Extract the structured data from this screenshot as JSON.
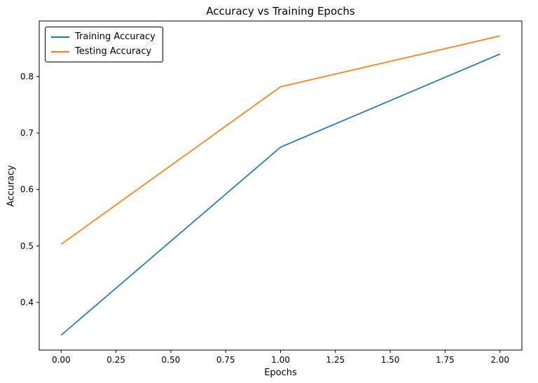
{
  "chart_data": {
    "type": "line",
    "title": "Accuracy vs Training Epochs",
    "xlabel": "Epochs",
    "ylabel": "Accuracy",
    "x": [
      0,
      1,
      2
    ],
    "series": [
      {
        "name": "Training Accuracy",
        "color": "#1f77b4",
        "values": [
          0.342,
          0.675,
          0.84
        ]
      },
      {
        "name": "Testing Accuracy",
        "color": "#ff7f0e",
        "values": [
          0.503,
          0.782,
          0.872
        ]
      }
    ],
    "xlim": [
      -0.1,
      2.1
    ],
    "ylim": [
      0.3155,
      0.8985
    ],
    "x_ticks": [
      "0.00",
      "0.25",
      "0.50",
      "0.75",
      "1.00",
      "1.25",
      "1.50",
      "1.75",
      "2.00"
    ],
    "y_ticks": [
      "0.4",
      "0.5",
      "0.6",
      "0.7",
      "0.8"
    ],
    "legend_position": "upper left",
    "grid": false,
    "frame_color": "#000000"
  }
}
